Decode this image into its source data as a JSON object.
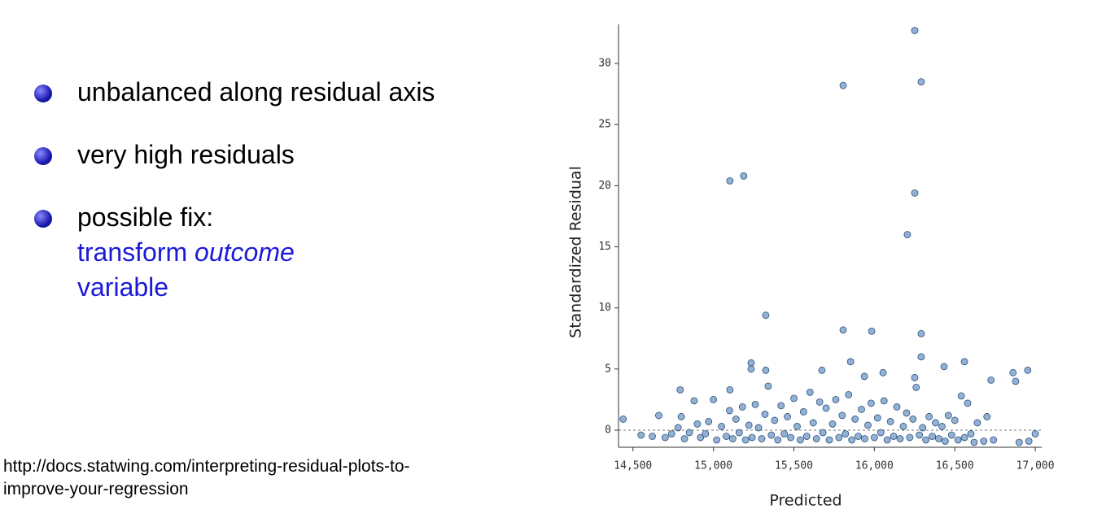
{
  "bullets": [
    {
      "text": "unbalanced along residual axis"
    },
    {
      "text": "very high residuals"
    },
    {
      "text": "possible fix:",
      "fix_parts": [
        "transform",
        "outcome",
        "variable"
      ]
    }
  ],
  "source": "http://docs.statwing.com/interpreting-residual-plots-to-improve-your-regression",
  "chart_data": {
    "type": "scatter",
    "xlabel": "Predicted",
    "ylabel": "Standardized Residual",
    "xlim": [
      14410,
      17040
    ],
    "ylim": [
      -1.4,
      33.2
    ],
    "xticks": [
      {
        "value": 14500,
        "label": "14,500"
      },
      {
        "value": 15000,
        "label": "15,000"
      },
      {
        "value": 15500,
        "label": "15,500"
      },
      {
        "value": 16000,
        "label": "16,000"
      },
      {
        "value": 16500,
        "label": "16,500"
      },
      {
        "value": 17000,
        "label": "17,000"
      }
    ],
    "yticks": [
      0,
      5,
      10,
      15,
      20,
      25,
      30
    ],
    "hline": 0,
    "series": [
      {
        "color": "#6f98c4",
        "x": [
          15102,
          15188,
          15806,
          16251,
          16291,
          16251,
          16205,
          15325,
          15806,
          15983,
          16291,
          16291,
          16560,
          15852,
          16878,
          16862,
          16953,
          16725,
          16433,
          16251,
          16054,
          15938,
          15674,
          15102,
          14793,
          15234,
          15234,
          15325,
          14439,
          14550,
          14620,
          14660,
          14700,
          14740,
          14780,
          14800,
          14820,
          14850,
          14880,
          14900,
          14920,
          14950,
          14970,
          15000,
          15020,
          15050,
          15080,
          15100,
          15120,
          15140,
          15160,
          15180,
          15200,
          15220,
          15240,
          15260,
          15280,
          15300,
          15320,
          15340,
          15360,
          15380,
          15400,
          15420,
          15440,
          15460,
          15480,
          15500,
          15520,
          15540,
          15560,
          15580,
          15600,
          15620,
          15640,
          15660,
          15680,
          15700,
          15720,
          15740,
          15760,
          15780,
          15800,
          15820,
          15840,
          15860,
          15880,
          15900,
          15920,
          15940,
          15960,
          15980,
          16000,
          16020,
          16040,
          16060,
          16080,
          16100,
          16120,
          16140,
          16160,
          16180,
          16200,
          16220,
          16240,
          16260,
          16280,
          16300,
          16320,
          16340,
          16360,
          16380,
          16400,
          16420,
          16440,
          16460,
          16480,
          16500,
          16520,
          16540,
          16560,
          16580,
          16600,
          16620,
          16640,
          16680,
          16700,
          16740,
          16900,
          16960,
          17000
        ],
        "values": [
          20.4,
          20.8,
          28.2,
          32.7,
          28.5,
          19.4,
          16.0,
          9.4,
          8.2,
          8.1,
          7.9,
          6.0,
          5.6,
          5.6,
          4.0,
          4.7,
          4.9,
          4.1,
          5.2,
          4.3,
          4.7,
          4.4,
          4.9,
          3.3,
          3.3,
          5.5,
          5.0,
          4.9,
          0.9,
          -0.4,
          -0.5,
          1.2,
          -0.6,
          -0.3,
          0.2,
          1.1,
          -0.7,
          -0.2,
          2.4,
          0.5,
          -0.6,
          -0.3,
          0.7,
          2.5,
          -0.8,
          0.3,
          -0.5,
          1.6,
          -0.7,
          0.9,
          -0.2,
          1.9,
          -0.8,
          0.4,
          -0.6,
          2.1,
          0.2,
          -0.7,
          1.3,
          3.6,
          -0.4,
          0.8,
          -0.8,
          2.0,
          -0.3,
          1.1,
          -0.6,
          2.6,
          0.3,
          -0.8,
          1.5,
          -0.5,
          3.1,
          0.6,
          -0.7,
          2.3,
          -0.2,
          1.8,
          -0.8,
          0.5,
          2.5,
          -0.6,
          1.2,
          -0.3,
          2.9,
          -0.8,
          0.9,
          -0.5,
          1.7,
          -0.7,
          0.4,
          2.2,
          -0.6,
          1.0,
          -0.2,
          2.4,
          -0.8,
          0.7,
          -0.5,
          1.9,
          -0.7,
          0.3,
          1.4,
          -0.6,
          0.9,
          3.5,
          -0.4,
          0.2,
          -0.8,
          1.1,
          -0.5,
          0.6,
          -0.7,
          0.3,
          -0.9,
          1.2,
          -0.4,
          0.8,
          -0.8,
          2.8,
          -0.6,
          2.2,
          -0.3,
          -1.0,
          0.6,
          -0.9,
          1.1,
          -0.8,
          -1.0,
          -0.9,
          -0.3
        ]
      }
    ]
  }
}
